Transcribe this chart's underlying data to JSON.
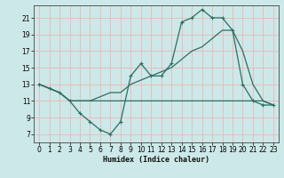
{
  "xlabel": "Humidex (Indice chaleur)",
  "bg_color": "#cde8e8",
  "grid_color": "#e8b8b8",
  "line_color": "#2a6e62",
  "xlim": [
    -0.5,
    23.5
  ],
  "ylim": [
    6,
    22.5
  ],
  "xticks": [
    0,
    1,
    2,
    3,
    4,
    5,
    6,
    7,
    8,
    9,
    10,
    11,
    12,
    13,
    14,
    15,
    16,
    17,
    18,
    19,
    20,
    21,
    22,
    23
  ],
  "yticks": [
    7,
    9,
    11,
    13,
    15,
    17,
    19,
    21
  ],
  "line1_x": [
    0,
    1,
    2,
    3,
    4,
    5,
    6,
    7,
    8,
    9,
    10,
    11,
    12,
    13,
    14,
    15,
    16,
    17,
    18,
    19,
    20,
    21,
    22,
    23
  ],
  "line1_y": [
    13,
    12.5,
    12,
    11,
    9.5,
    8.5,
    7.5,
    7,
    8.5,
    14,
    15.5,
    14,
    14,
    15.5,
    20.5,
    21,
    22,
    21,
    21,
    19.5,
    13,
    11,
    10.5,
    10.5
  ],
  "line2_x": [
    0,
    1,
    2,
    3,
    4,
    17,
    18,
    20,
    21,
    22,
    23
  ],
  "line2_y": [
    13,
    12.5,
    12,
    11,
    11,
    11,
    11,
    11,
    11,
    11,
    10.5
  ],
  "line3_x": [
    0,
    1,
    2,
    3,
    4,
    5,
    6,
    7,
    8,
    9,
    10,
    11,
    12,
    13,
    14,
    15,
    16,
    17,
    18,
    19,
    20,
    21,
    22,
    23
  ],
  "line3_y": [
    13,
    12.5,
    12,
    11,
    11,
    11,
    11.5,
    12,
    12,
    13,
    13.5,
    14,
    14.5,
    15,
    16,
    17,
    17.5,
    18.5,
    19.5,
    19.5,
    17,
    13,
    11,
    10.5
  ]
}
